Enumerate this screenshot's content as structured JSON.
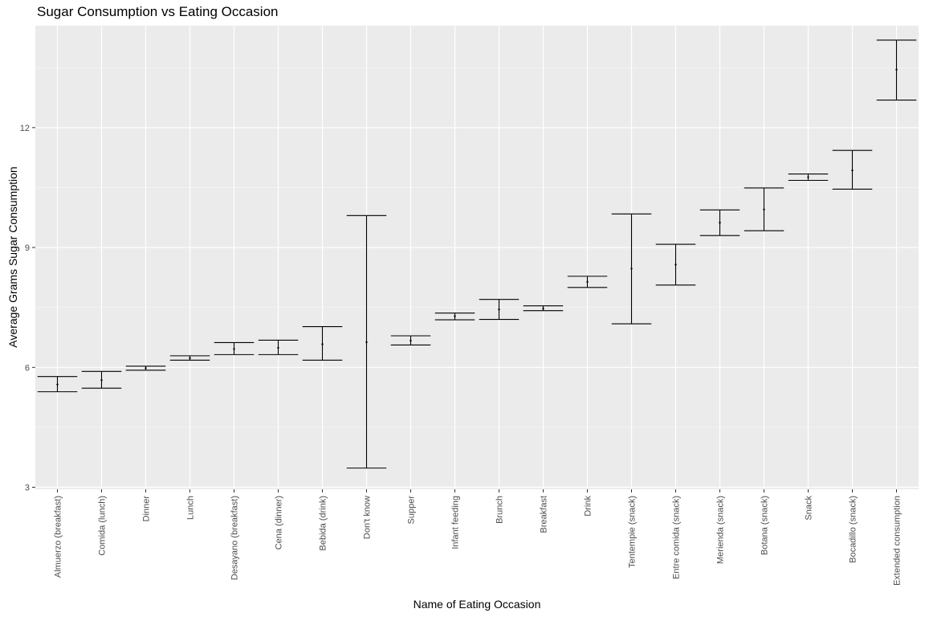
{
  "chart_data": {
    "type": "errorbar",
    "title": "Sugar Consumption vs Eating Occasion",
    "xlabel": "Name of Eating Occasion",
    "ylabel": "Average Grams Sugar Consumption",
    "ylim": [
      2.95,
      14.55
    ],
    "yticks": [
      3,
      6,
      9,
      12
    ],
    "grid": true,
    "categories": [
      "Almuerzo (breakfast)",
      "Comida (lunch)",
      "Dinner",
      "Lunch",
      "Desayano (breakfast)",
      "Cena (dinner)",
      "Bebida (drink)",
      "Don't know",
      "Supper",
      "Infant feeding",
      "Brunch",
      "Breakfast",
      "Drink",
      "Tentempie (snack)",
      "Entre comida (snack)",
      "Merienda (snack)",
      "Botana (snack)",
      "Snack",
      "Bocadillo (snack)",
      "Extended consumption"
    ],
    "mean": [
      5.57,
      5.68,
      5.98,
      6.23,
      6.46,
      6.49,
      6.58,
      6.63,
      6.67,
      7.28,
      7.45,
      7.47,
      8.14,
      8.47,
      8.57,
      9.62,
      9.95,
      10.76,
      10.93,
      13.45
    ],
    "lower": [
      5.39,
      5.48,
      5.93,
      6.18,
      6.32,
      6.32,
      6.18,
      3.48,
      6.56,
      7.19,
      7.2,
      7.42,
      8.0,
      7.09,
      8.06,
      9.3,
      9.42,
      10.68,
      10.46,
      12.69
    ],
    "upper": [
      5.77,
      5.9,
      6.03,
      6.29,
      6.62,
      6.68,
      7.02,
      9.8,
      6.79,
      7.36,
      7.7,
      7.54,
      8.28,
      9.84,
      9.08,
      9.94,
      10.49,
      10.84,
      11.43,
      14.19
    ]
  }
}
